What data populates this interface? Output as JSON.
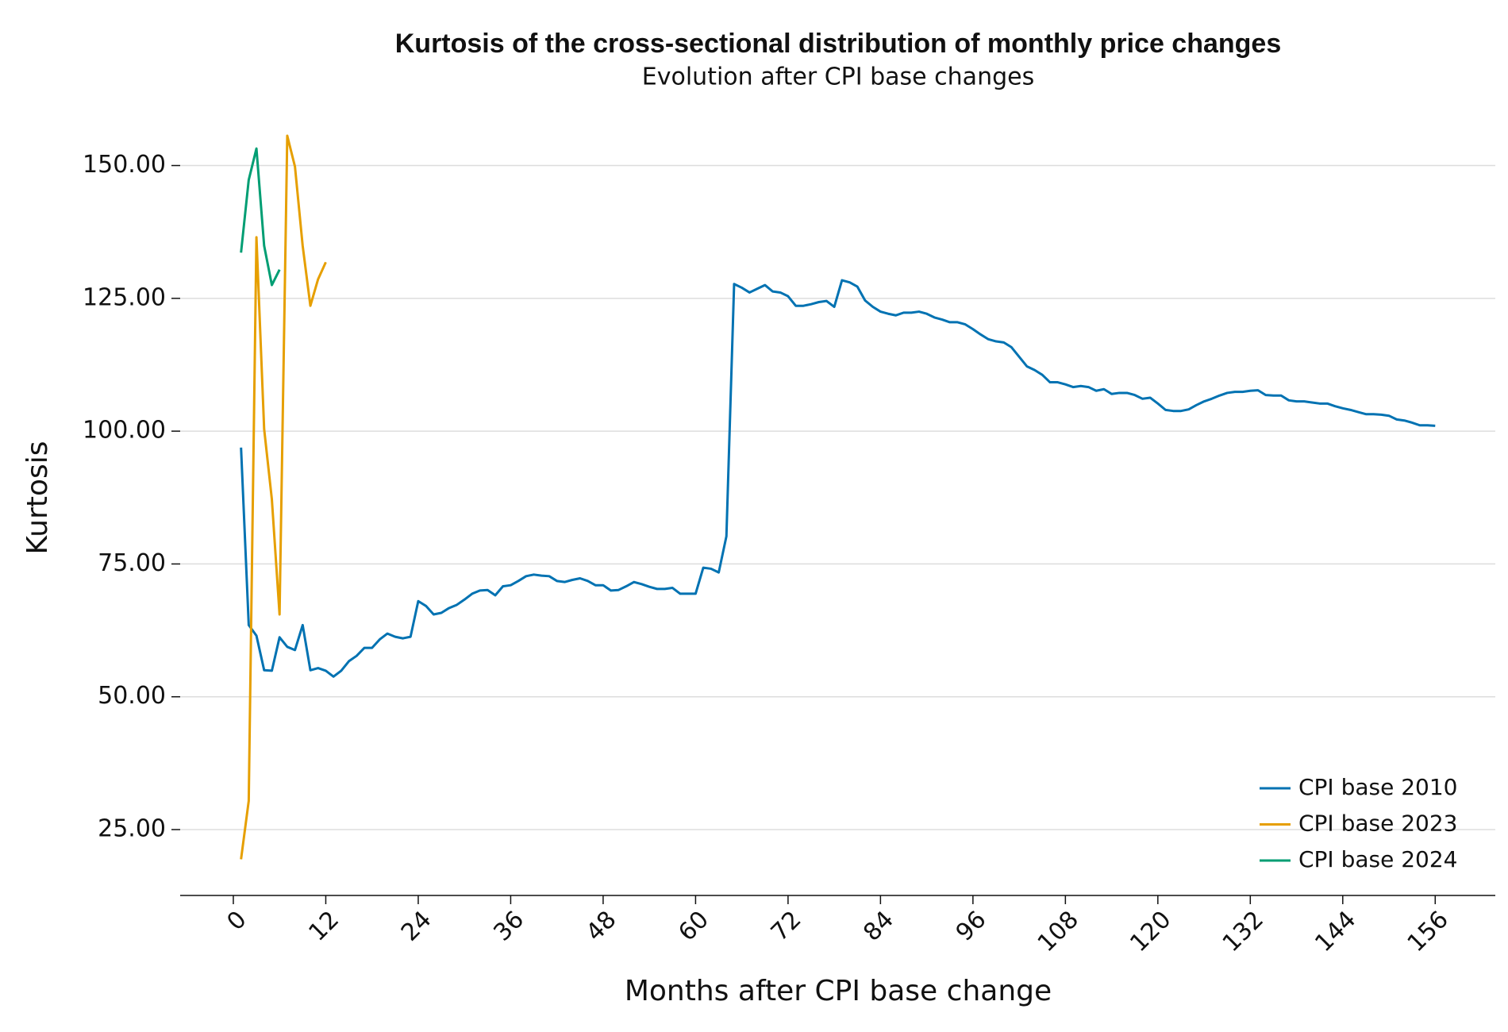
{
  "chart_data": {
    "type": "line",
    "title": "Kurtosis of the cross-sectional distribution of monthly price changes",
    "subtitle": "Evolution after CPI base changes",
    "x_label": "Months after CPI base change",
    "y_label": "Kurtosis",
    "xlim": [
      -6.9,
      163.8
    ],
    "ylim": [
      12.6,
      157.4
    ],
    "xticks": [
      0,
      12,
      24,
      36,
      48,
      60,
      72,
      84,
      96,
      108,
      120,
      132,
      144,
      156
    ],
    "yticks": [
      {
        "value": 25,
        "label": "25.00"
      },
      {
        "value": 50,
        "label": "50.00"
      },
      {
        "value": 75,
        "label": "75.00"
      },
      {
        "value": 100,
        "label": "100.00"
      },
      {
        "value": 125,
        "label": "125.00"
      },
      {
        "value": 150,
        "label": "150.00"
      }
    ],
    "grid": true,
    "legend": "lower right",
    "series": [
      {
        "name": "CPI base 2010",
        "color": "#0072b2",
        "x": [
          1,
          2,
          3,
          4,
          5,
          6,
          7,
          8,
          9,
          10,
          11,
          12,
          13,
          14,
          15,
          16,
          17,
          18,
          19,
          20,
          21,
          22,
          23,
          24,
          25,
          26,
          27,
          28,
          29,
          30,
          31,
          32,
          33,
          34,
          35,
          36,
          37,
          38,
          39,
          40,
          41,
          42,
          43,
          44,
          45,
          46,
          47,
          48,
          49,
          50,
          51,
          52,
          53,
          54,
          55,
          56,
          57,
          58,
          59,
          60,
          61,
          62,
          63,
          64,
          65,
          66,
          67,
          68,
          69,
          70,
          71,
          72,
          73,
          74,
          75,
          76,
          77,
          78,
          79,
          80,
          81,
          82,
          83,
          84,
          85,
          86,
          87,
          88,
          89,
          90,
          91,
          92,
          93,
          94,
          95,
          96,
          97,
          98,
          99,
          100,
          101,
          102,
          103,
          104,
          105,
          106,
          107,
          108,
          109,
          110,
          111,
          112,
          113,
          114,
          115,
          116,
          117,
          118,
          119,
          120,
          121,
          122,
          123,
          124,
          125,
          126,
          127,
          128,
          129,
          130,
          131,
          132,
          133,
          134,
          135,
          136,
          137,
          138,
          139,
          140,
          141,
          142,
          143,
          144,
          145,
          146,
          147,
          148,
          149,
          150,
          151,
          152,
          153,
          154,
          155,
          156
        ],
        "values": [
          96.9,
          63.5,
          61.5,
          55,
          54.9,
          61.2,
          59.4,
          58.8,
          63.5,
          55,
          55.4,
          54.9,
          53.8,
          54.9,
          56.7,
          57.7,
          59.2,
          59.2,
          60.8,
          61.9,
          61.3,
          61,
          61.3,
          68,
          67.1,
          65.5,
          65.8,
          66.7,
          67.3,
          68.3,
          69.4,
          70,
          70.1,
          69.1,
          70.8,
          71,
          71.8,
          72.7,
          73,
          72.8,
          72.7,
          71.8,
          71.6,
          72,
          72.3,
          71.8,
          71,
          71,
          70,
          70.1,
          70.8,
          71.6,
          71.2,
          70.7,
          70.3,
          70.3,
          70.5,
          69.4,
          69.4,
          69.4,
          74.3,
          74.1,
          73.4,
          80.2,
          127.7,
          127,
          126.1,
          126.8,
          127.5,
          126.3,
          126.1,
          125.4,
          123.6,
          123.6,
          123.9,
          124.3,
          124.5,
          123.4,
          128.4,
          128,
          127.2,
          124.6,
          123.4,
          122.5,
          122.1,
          121.8,
          122.3,
          122.3,
          122.5,
          122.1,
          121.4,
          121,
          120.5,
          120.5,
          120.1,
          119.2,
          118.2,
          117.3,
          116.9,
          116.7,
          115.8,
          114,
          112.2,
          111.5,
          110.6,
          109.2,
          109.2,
          108.8,
          108.3,
          108.5,
          108.3,
          107.6,
          107.9,
          107,
          107.2,
          107.2,
          106.8,
          106.1,
          106.3,
          105.2,
          104,
          103.8,
          103.8,
          104.1,
          104.9,
          105.6,
          106.1,
          106.7,
          107.2,
          107.4,
          107.4,
          107.6,
          107.7,
          106.8,
          106.7,
          106.7,
          105.8,
          105.6,
          105.6,
          105.4,
          105.2,
          105.2,
          104.7,
          104.3,
          104,
          103.6,
          103.2,
          103.2,
          103.1,
          102.9,
          102.2,
          102,
          101.6,
          101.1,
          101.1,
          101
        ]
      },
      {
        "name": "CPI base 2023",
        "color": "#e69f00",
        "x": [
          1,
          2,
          3,
          4,
          5,
          6,
          7,
          8,
          9,
          10,
          11,
          12
        ],
        "values": [
          19.4,
          30.4,
          136.5,
          100.4,
          87.2,
          65.5,
          155.6,
          149.8,
          134.9,
          123.6,
          128.6,
          131.8
        ]
      },
      {
        "name": "CPI base 2024",
        "color": "#009e73",
        "x": [
          1,
          2,
          3,
          4,
          5,
          6
        ],
        "values": [
          133.6,
          147.3,
          153.2,
          134.9,
          127.5,
          130.4
        ]
      }
    ]
  }
}
